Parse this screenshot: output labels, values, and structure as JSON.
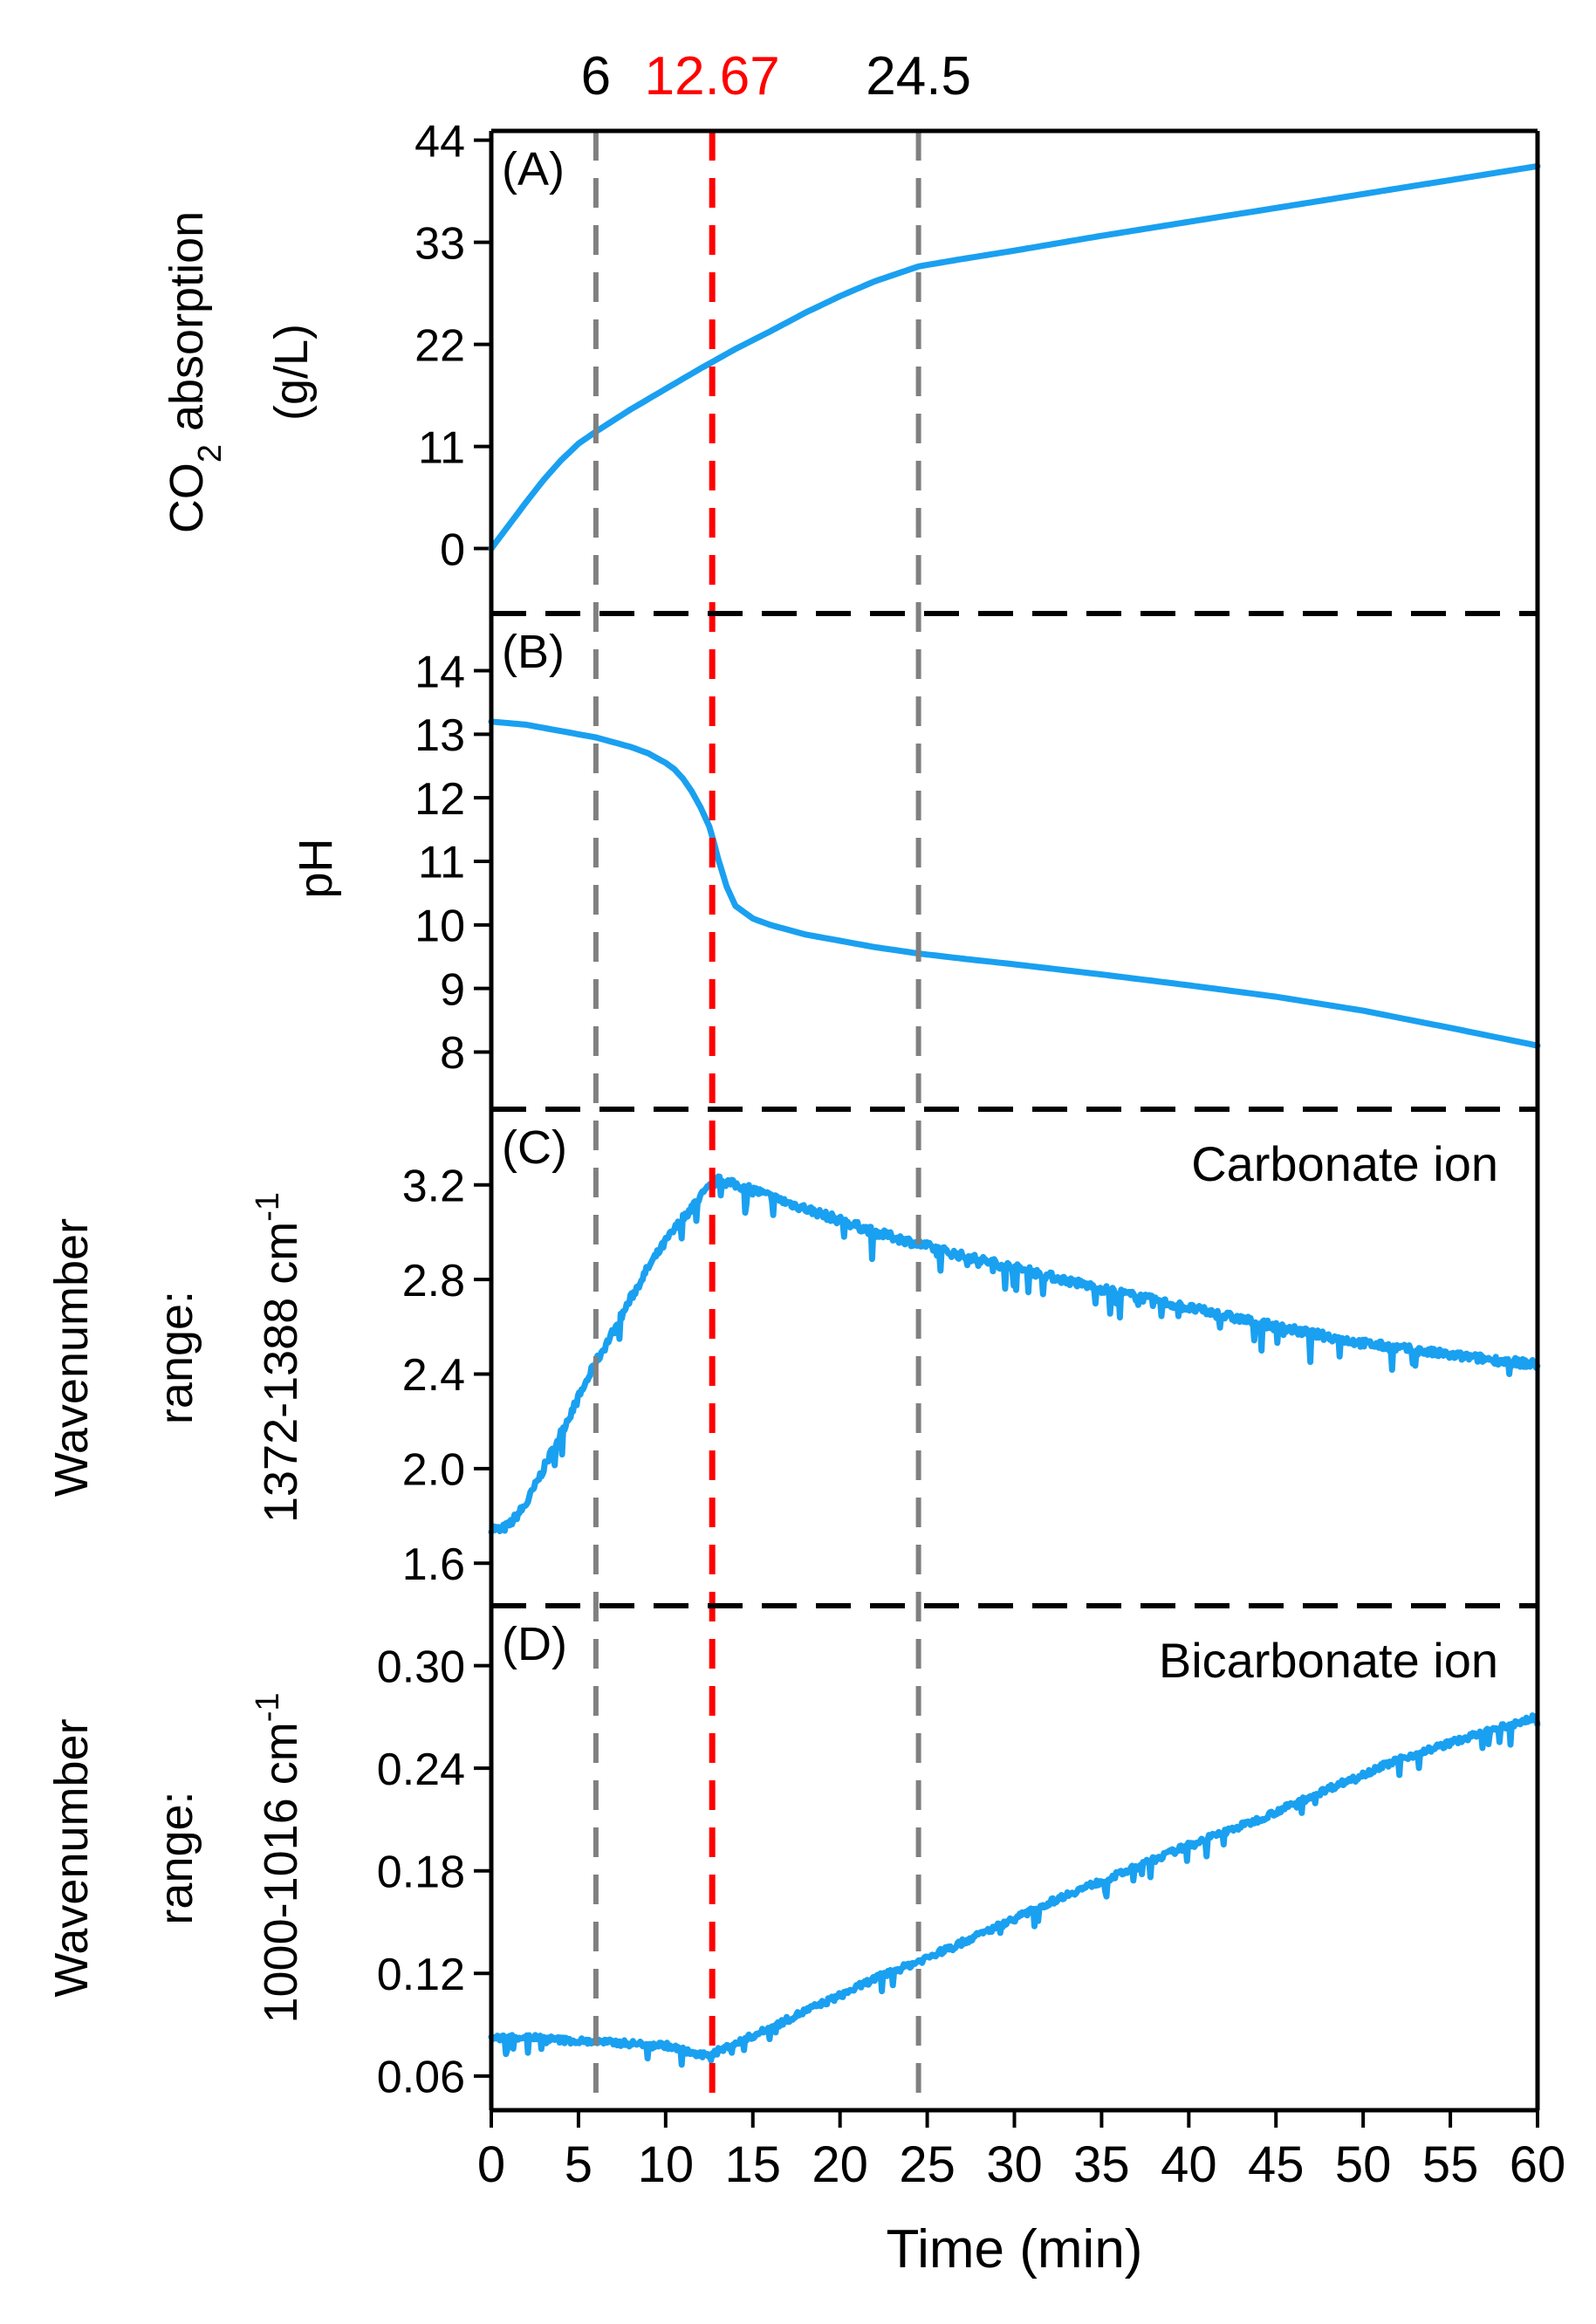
{
  "chart_data": {
    "type": "line",
    "x_axis": {
      "label": "Time (min)",
      "range": [
        0,
        60
      ],
      "ticks": [
        0,
        5,
        10,
        15,
        20,
        25,
        30,
        35,
        40,
        45,
        50,
        55,
        60
      ]
    },
    "markers": [
      {
        "x": 6,
        "label": "6",
        "color": "#808080"
      },
      {
        "x": 12.67,
        "label": "12.67",
        "color": "#ff0000"
      },
      {
        "x": 24.5,
        "label": "24.5",
        "color": "#808080"
      }
    ],
    "series_color": "#1aa0f0",
    "panels": [
      {
        "id": "A",
        "panel_label": "(A)",
        "ylabel_lines": [
          "(g/L)"
        ],
        "ylabel_co2": {
          "pre": "CO",
          "sub": "2",
          "post": " absorption"
        },
        "ylim": [
          -7,
          45
        ],
        "yticks": [
          0,
          11,
          22,
          33,
          44
        ],
        "ytick_labels": [
          "0",
          "11",
          "22",
          "33",
          "44"
        ],
        "noise": 0,
        "x": [
          0,
          1,
          2,
          3,
          4,
          5,
          6,
          8,
          10,
          12,
          12.67,
          14,
          16,
          18,
          20,
          22,
          24.5,
          27,
          30,
          35,
          40,
          45,
          50,
          55,
          60
        ],
        "y": [
          0,
          2.5,
          5,
          7.4,
          9.5,
          11.3,
          12.6,
          15,
          17.2,
          19.4,
          20.1,
          21.5,
          23.4,
          25.4,
          27.2,
          28.8,
          30.4,
          31.2,
          32.1,
          33.7,
          35.2,
          36.7,
          38.2,
          39.7,
          41.2
        ]
      },
      {
        "id": "B",
        "panel_label": "(B)",
        "ylabel_lines": [
          "pH"
        ],
        "ylim": [
          7.1,
          14.9
        ],
        "yticks": [
          8,
          9,
          10,
          11,
          12,
          13,
          14
        ],
        "ytick_labels": [
          "8",
          "9",
          "10",
          "11",
          "12",
          "13",
          "14"
        ],
        "noise": 0,
        "x": [
          0,
          2,
          4,
          6,
          8,
          9,
          10,
          10.5,
          11,
          11.5,
          12,
          12.5,
          12.67,
          13,
          13.5,
          14,
          15,
          16,
          18,
          20,
          22,
          24.5,
          27,
          30,
          35,
          40,
          45,
          50,
          55,
          60
        ],
        "y": [
          13.2,
          13.15,
          13.05,
          12.95,
          12.8,
          12.7,
          12.55,
          12.45,
          12.3,
          12.1,
          11.85,
          11.55,
          11.4,
          11.05,
          10.6,
          10.3,
          10.1,
          10.0,
          9.85,
          9.75,
          9.65,
          9.55,
          9.47,
          9.38,
          9.22,
          9.05,
          8.87,
          8.65,
          8.38,
          8.1
        ]
      },
      {
        "id": "C",
        "panel_label": "(C)",
        "ylabel_lines": [
          "Wavenumber",
          "range:",
          "1372-1388 cm"
        ],
        "ylabel_sup": "-1",
        "annotation": "Carbonate ion",
        "ylim": [
          1.42,
          3.52
        ],
        "yticks": [
          1.6,
          2.0,
          2.4,
          2.8,
          3.2
        ],
        "ytick_labels": [
          "1.6",
          "2.0",
          "2.4",
          "2.8",
          "3.2"
        ],
        "noise": 0.06,
        "x": [
          0,
          0.5,
          1,
          2,
          3,
          4,
          5,
          6,
          7,
          8,
          9,
          10,
          11,
          12,
          12.67,
          13,
          14,
          15,
          16,
          18,
          20,
          22,
          24.5,
          27,
          30,
          35,
          40,
          45,
          50,
          55,
          60
        ],
        "y": [
          1.75,
          1.74,
          1.76,
          1.85,
          2.0,
          2.15,
          2.3,
          2.45,
          2.58,
          2.72,
          2.85,
          2.96,
          3.06,
          3.15,
          3.2,
          3.22,
          3.2,
          3.18,
          3.15,
          3.1,
          3.05,
          3.0,
          2.95,
          2.9,
          2.85,
          2.76,
          2.68,
          2.6,
          2.53,
          2.48,
          2.44
        ]
      },
      {
        "id": "D",
        "panel_label": "(D)",
        "ylabel_lines": [
          "Wavenumber",
          "range:",
          "1000-1016 cm"
        ],
        "ylabel_sup": "-1",
        "annotation": "Bicarbonate ion",
        "ylim": [
          0.04,
          0.335
        ],
        "yticks": [
          0.06,
          0.12,
          0.18,
          0.24,
          0.3
        ],
        "ytick_labels": [
          "0.06",
          "0.12",
          "0.18",
          "0.24",
          "0.30"
        ],
        "noise": 0.006,
        "x": [
          0,
          2,
          4,
          6,
          8,
          10,
          11,
          12,
          12.67,
          14,
          16,
          18,
          20,
          22,
          24.5,
          27,
          30,
          33,
          36,
          40,
          44,
          48,
          52,
          56,
          60
        ],
        "y": [
          0.082,
          0.083,
          0.081,
          0.08,
          0.079,
          0.078,
          0.075,
          0.072,
          0.073,
          0.079,
          0.088,
          0.098,
          0.107,
          0.117,
          0.127,
          0.138,
          0.152,
          0.166,
          0.178,
          0.195,
          0.21,
          0.228,
          0.245,
          0.258,
          0.27
        ]
      }
    ]
  }
}
